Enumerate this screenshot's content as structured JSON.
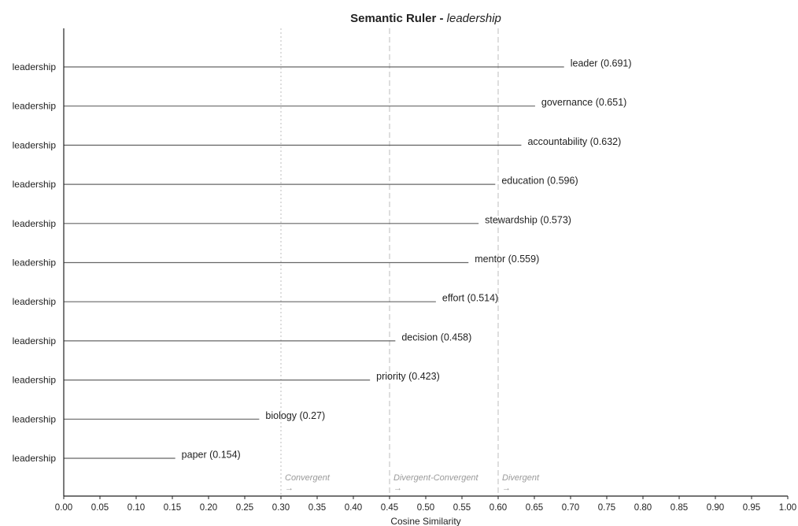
{
  "chart_data": {
    "type": "bar",
    "title": "Semantic Ruler - ",
    "title_term": "leadership",
    "xlabel": "Cosine Similarity",
    "xlim": [
      0.0,
      1.0
    ],
    "xticks": [
      0.0,
      0.05,
      0.1,
      0.15,
      0.2,
      0.25,
      0.3,
      0.35,
      0.4,
      0.45,
      0.5,
      0.55,
      0.6,
      0.65,
      0.7,
      0.75,
      0.8,
      0.85,
      0.9,
      0.95,
      1.0
    ],
    "xtick_labels": [
      "0.00",
      "0.05",
      "0.10",
      "0.15",
      "0.20",
      "0.25",
      "0.30",
      "0.35",
      "0.40",
      "0.45",
      "0.50",
      "0.55",
      "0.60",
      "0.65",
      "0.70",
      "0.75",
      "0.80",
      "0.85",
      "0.90",
      "0.95",
      "1.00"
    ],
    "orientation": "horizontal",
    "grid": false,
    "rows": [
      {
        "label": "leadership",
        "term": "leader",
        "value": 0.691,
        "end_label": "leader (0.691)"
      },
      {
        "label": "leadership",
        "term": "governance",
        "value": 0.651,
        "end_label": "governance (0.651)"
      },
      {
        "label": "leadership",
        "term": "accountability",
        "value": 0.632,
        "end_label": "accountability (0.632)"
      },
      {
        "label": "leadership",
        "term": "education",
        "value": 0.596,
        "end_label": "education (0.596)"
      },
      {
        "label": "leadership",
        "term": "stewardship",
        "value": 0.573,
        "end_label": "stewardship (0.573)"
      },
      {
        "label": "leadership",
        "term": "mentor",
        "value": 0.559,
        "end_label": "mentor (0.559)"
      },
      {
        "label": "leadership",
        "term": "effort",
        "value": 0.514,
        "end_label": "effort (0.514)"
      },
      {
        "label": "leadership",
        "term": "decision",
        "value": 0.458,
        "end_label": "decision (0.458)"
      },
      {
        "label": "leadership",
        "term": "priority",
        "value": 0.423,
        "end_label": "priority (0.423)"
      },
      {
        "label": "leadership",
        "term": "biology",
        "value": 0.27,
        "end_label": "biology (0.27)"
      },
      {
        "label": "leadership",
        "term": "paper",
        "value": 0.154,
        "end_label": "paper (0.154)"
      }
    ],
    "reference_lines": [
      {
        "x": 0.3,
        "style": "dotted"
      },
      {
        "x": 0.45,
        "style": "dashed"
      },
      {
        "x": 0.6,
        "style": "dashed"
      }
    ],
    "zones": [
      {
        "x": 0.3,
        "label": "Convergent",
        "arrow": "→"
      },
      {
        "x": 0.45,
        "label": "Divergent-Convergent",
        "arrow": "→"
      },
      {
        "x": 0.6,
        "label": "Divergent",
        "arrow": "→"
      }
    ],
    "colors": {
      "line": "#666666",
      "axis": "#222222",
      "ref_line": "#c8c8c8",
      "zone_text": "#9a9a9a"
    }
  }
}
